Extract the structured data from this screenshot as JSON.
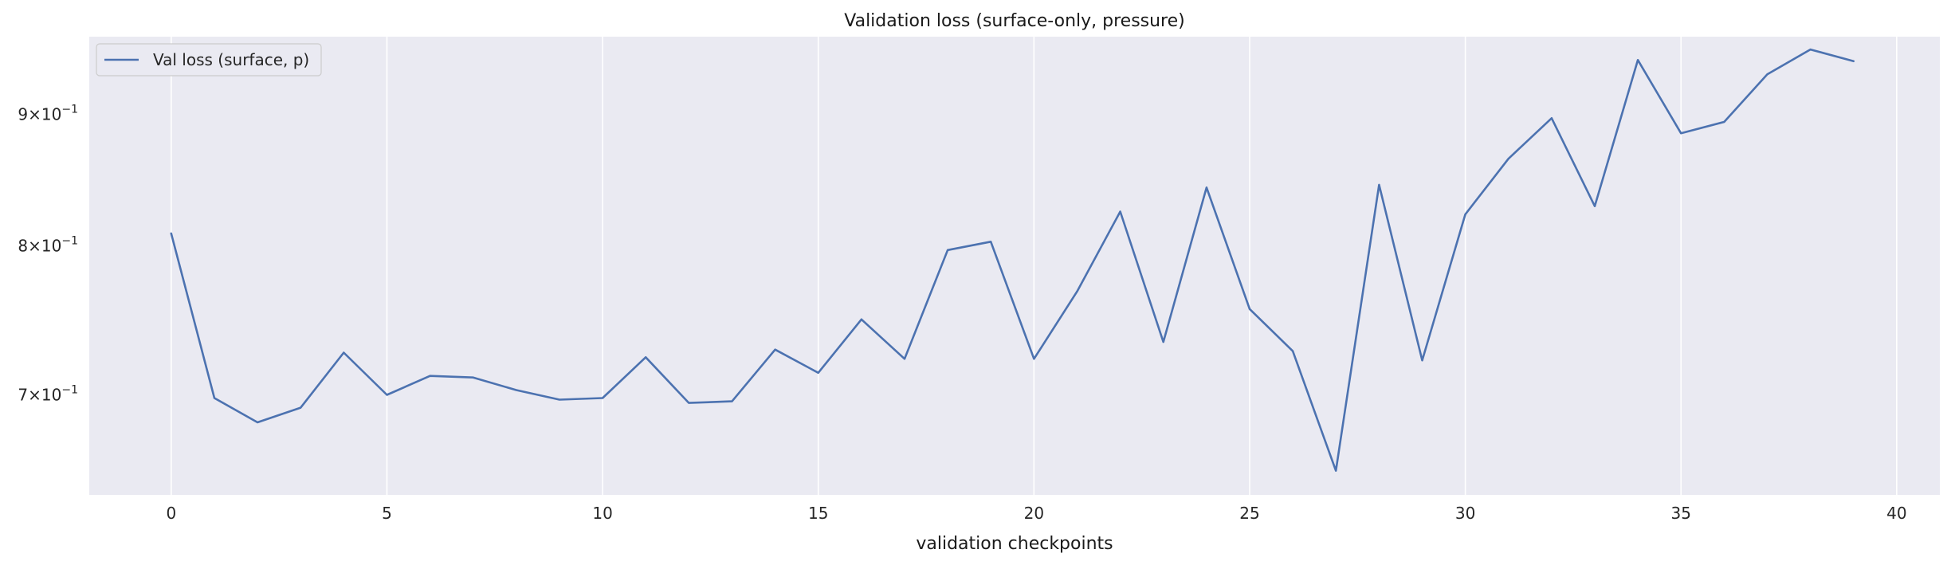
{
  "chart_data": {
    "type": "line",
    "title": "Validation loss (surface-only, pressure)",
    "xlabel": "validation checkpoints",
    "ylabel": "",
    "yscale": "log",
    "xlim": [
      -1.9,
      41
    ],
    "ylim": [
      0.64,
      0.965
    ],
    "grid": true,
    "legend_position": "top-left",
    "x_ticks": [
      0,
      5,
      10,
      15,
      20,
      25,
      30,
      35,
      40
    ],
    "x_tick_labels": [
      "0",
      "5",
      "10",
      "15",
      "20",
      "25",
      "30",
      "35",
      "40"
    ],
    "y_ticks": [
      0.7,
      0.8,
      0.9
    ],
    "y_tick_mantissa": [
      "7",
      "8",
      "9"
    ],
    "y_tick_base": "10",
    "y_tick_exponent": "−1",
    "y_tick_times": "×",
    "series": [
      {
        "name": "Val loss (surface, p)",
        "color": "#4c72b0",
        "x": [
          0,
          1,
          2,
          3,
          4,
          5,
          6,
          7,
          8,
          9,
          10,
          11,
          12,
          13,
          14,
          15,
          16,
          17,
          18,
          19,
          20,
          21,
          22,
          23,
          24,
          25,
          26,
          27,
          28,
          29,
          30,
          31,
          32,
          33,
          34,
          35,
          36,
          37,
          38,
          39
        ],
        "values": [
          0.809,
          0.698,
          0.683,
          0.692,
          0.727,
          0.7,
          0.712,
          0.711,
          0.703,
          0.697,
          0.698,
          0.724,
          0.695,
          0.696,
          0.729,
          0.714,
          0.749,
          0.723,
          0.797,
          0.803,
          0.723,
          0.768,
          0.825,
          0.734,
          0.843,
          0.756,
          0.728,
          0.654,
          0.845,
          0.722,
          0.823,
          0.865,
          0.897,
          0.829,
          0.945,
          0.885,
          0.894,
          0.933,
          0.954,
          0.944
        ]
      }
    ]
  },
  "colors": {
    "plot_background": "#eaeaf2",
    "grid": "#ffffff",
    "line": "#4c72b0",
    "text": "#262626"
  }
}
